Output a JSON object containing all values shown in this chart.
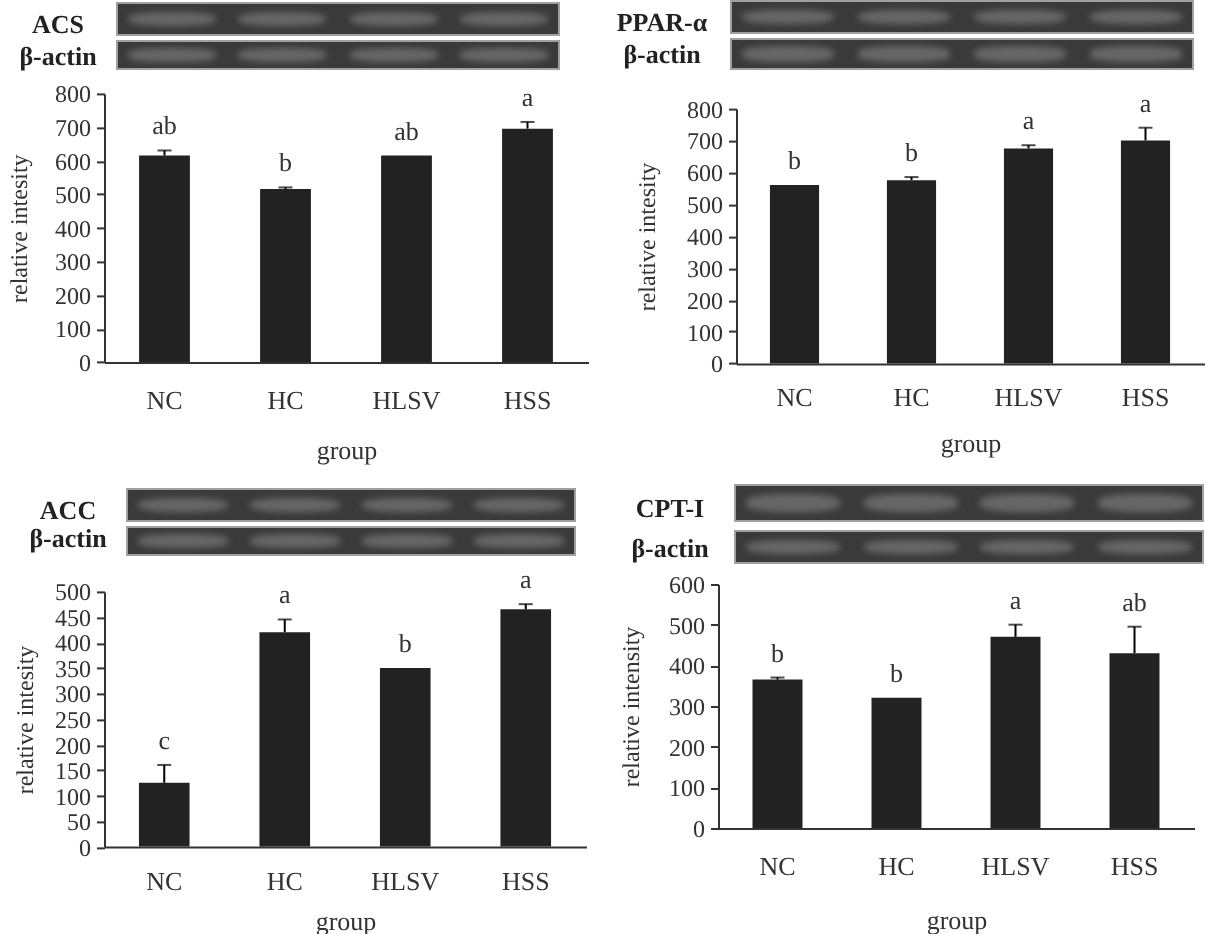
{
  "chart_data": [
    {
      "type": "bar",
      "title": "ACS",
      "annotations": [
        "β-actin",
        {
          "text": "ab",
          "x": "NC",
          "y": 630
        },
        {
          "text": "b",
          "x": "HC",
          "y": 520
        },
        {
          "text": "ab",
          "x": "HLSV",
          "y": 615
        },
        {
          "text": "a",
          "x": "HSS",
          "y": 715
        }
      ],
      "categories": [
        "NC",
        "HC",
        "HLSV",
        "HSS"
      ],
      "values": [
        615,
        515,
        615,
        695
      ],
      "errors": [
        [
          615,
          630
        ],
        [
          515,
          520
        ],
        null,
        [
          695,
          715
        ]
      ],
      "color": "#222222",
      "xlabel": "group",
      "ylabel": "relative intesity",
      "ylim": [
        0,
        800
      ],
      "yticks": [
        0,
        100,
        200,
        300,
        400,
        500,
        600,
        700,
        800
      ]
    },
    {
      "type": "bar",
      "title": "PPAR-α",
      "annotations": [
        "β-actin",
        {
          "text": "b",
          "x": "NC",
          "y": 560
        },
        {
          "text": "b",
          "x": "HC",
          "y": 585
        },
        {
          "text": "a",
          "x": "HLSV",
          "y": 685
        },
        {
          "text": "a",
          "x": "HSS",
          "y": 740
        }
      ],
      "categories": [
        "NC",
        "HC",
        "HLSV",
        "HSS"
      ],
      "values": [
        560,
        575,
        675,
        700
      ],
      "errors": [
        null,
        [
          575,
          585
        ],
        [
          675,
          685
        ],
        [
          700,
          740
        ]
      ],
      "color": "#222222",
      "xlabel": "group",
      "ylabel": "relative intesity",
      "ylim": [
        0,
        800
      ],
      "yticks": [
        0,
        100,
        200,
        300,
        400,
        500,
        600,
        700,
        800
      ]
    },
    {
      "type": "bar",
      "title": "ACC",
      "annotations": [
        "β-actin",
        {
          "text": "c",
          "x": "NC",
          "y": 160
        },
        {
          "text": "a",
          "x": "HC",
          "y": 445
        },
        {
          "text": "b",
          "x": "HLSV",
          "y": 350
        },
        {
          "text": "a",
          "x": "HSS",
          "y": 475
        }
      ],
      "categories": [
        "NC",
        "HC",
        "HLSV",
        "HSS"
      ],
      "values": [
        125,
        420,
        350,
        465
      ],
      "errors": [
        [
          125,
          160
        ],
        [
          420,
          445
        ],
        null,
        [
          465,
          475
        ]
      ],
      "color": "#222222",
      "xlabel": "group",
      "ylabel": "relative intesity",
      "ylim": [
        0,
        500
      ],
      "yticks": [
        0,
        50,
        100,
        150,
        200,
        250,
        300,
        350,
        400,
        450,
        500
      ]
    },
    {
      "type": "bar",
      "title": "CPT-I",
      "annotations": [
        "β-actin",
        {
          "text": "b",
          "x": "NC",
          "y": 370
        },
        {
          "text": "b",
          "x": "HC",
          "y": 320
        },
        {
          "text": "a",
          "x": "HLSV",
          "y": 500
        },
        {
          "text": "ab",
          "x": "HSS",
          "y": 495
        }
      ],
      "categories": [
        "NC",
        "HC",
        "HLSV",
        "HSS"
      ],
      "values": [
        365,
        320,
        470,
        430
      ],
      "errors": [
        [
          365,
          370
        ],
        null,
        [
          470,
          500
        ],
        [
          430,
          495
        ]
      ],
      "color": "#222222",
      "xlabel": "group",
      "ylabel": "relative intensity",
      "ylim": [
        0,
        600
      ],
      "yticks": [
        0,
        100,
        200,
        300,
        400,
        500,
        600
      ]
    }
  ]
}
